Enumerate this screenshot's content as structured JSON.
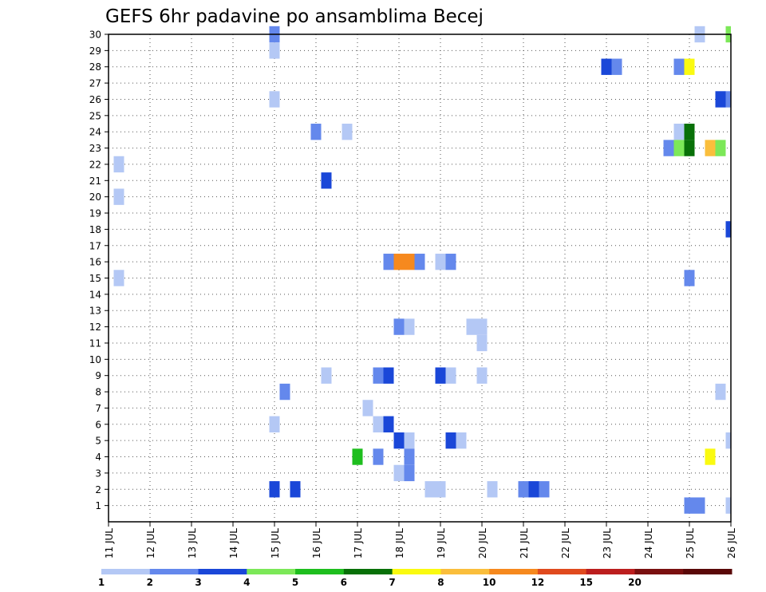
{
  "chart_data": {
    "type": "heatmap",
    "title": "GEFS 6hr padavine po ansamblima Becej",
    "xlabel": "",
    "ylabel": "",
    "x_unit": "day of July",
    "x_range": [
      11,
      26
    ],
    "x_tick_labels": [
      "11 JUL",
      "12 JUL",
      "13 JUL",
      "14 JUL",
      "15 JUL",
      "16 JUL",
      "17 JUL",
      "18 JUL",
      "19 JUL",
      "20 JUL",
      "21 JUL",
      "22 JUL",
      "23 JUL",
      "24 JUL",
      "25 JUL",
      "26 JUL"
    ],
    "y_range": [
      0,
      30
    ],
    "y_tick_labels": [
      "1",
      "2",
      "3",
      "4",
      "5",
      "6",
      "7",
      "8",
      "9",
      "10",
      "11",
      "12",
      "13",
      "14",
      "15",
      "16",
      "17",
      "18",
      "19",
      "20",
      "21",
      "22",
      "23",
      "24",
      "25",
      "26",
      "27",
      "28",
      "29",
      "30"
    ],
    "grid": true,
    "colorbar": {
      "labels": [
        "1",
        "2",
        "3",
        "4",
        "5",
        "6",
        "7",
        "8",
        "10",
        "12",
        "15",
        "20"
      ],
      "colors": [
        "#b4c8f5",
        "#6488ec",
        "#1a47d8",
        "#7ce858",
        "#1ebe1e",
        "#087008",
        "#fafa10",
        "#fabe3c",
        "#f6891e",
        "#e04a1e",
        "#bc1e1e",
        "#7a1010",
        "#5a0808"
      ]
    },
    "cell_value_note": "x = forecast time (day of July, 6-hour steps), member = ensemble member, value = precipitation category index into colorbar.colors (1-based)",
    "cells": [
      {
        "x": 11.25,
        "member": 22,
        "value": 1
      },
      {
        "x": 11.25,
        "member": 20,
        "value": 1
      },
      {
        "x": 11.25,
        "member": 15,
        "value": 1
      },
      {
        "x": 15.0,
        "member": 30,
        "value": 2
      },
      {
        "x": 15.0,
        "member": 29,
        "value": 1
      },
      {
        "x": 15.0,
        "member": 26,
        "value": 1
      },
      {
        "x": 15.0,
        "member": 6,
        "value": 1
      },
      {
        "x": 15.0,
        "member": 2,
        "value": 3
      },
      {
        "x": 15.25,
        "member": 8,
        "value": 2
      },
      {
        "x": 15.5,
        "member": 2,
        "value": 3
      },
      {
        "x": 16.0,
        "member": 24,
        "value": 2
      },
      {
        "x": 16.25,
        "member": 21,
        "value": 3
      },
      {
        "x": 16.25,
        "member": 9,
        "value": 1
      },
      {
        "x": 16.75,
        "member": 24,
        "value": 1
      },
      {
        "x": 17.0,
        "member": 4,
        "value": 5
      },
      {
        "x": 17.25,
        "member": 7,
        "value": 1
      },
      {
        "x": 17.5,
        "member": 9,
        "value": 2
      },
      {
        "x": 17.5,
        "member": 6,
        "value": 1
      },
      {
        "x": 17.5,
        "member": 4,
        "value": 2
      },
      {
        "x": 17.75,
        "member": 16,
        "value": 2
      },
      {
        "x": 17.75,
        "member": 9,
        "value": 3
      },
      {
        "x": 17.75,
        "member": 6,
        "value": 3
      },
      {
        "x": 18.0,
        "member": 16,
        "value": 9
      },
      {
        "x": 18.0,
        "member": 12,
        "value": 2
      },
      {
        "x": 18.0,
        "member": 5,
        "value": 3
      },
      {
        "x": 18.0,
        "member": 3,
        "value": 1
      },
      {
        "x": 18.25,
        "member": 16,
        "value": 9
      },
      {
        "x": 18.25,
        "member": 12,
        "value": 1
      },
      {
        "x": 18.25,
        "member": 5,
        "value": 1
      },
      {
        "x": 18.25,
        "member": 4,
        "value": 2
      },
      {
        "x": 18.25,
        "member": 3,
        "value": 2
      },
      {
        "x": 18.5,
        "member": 16,
        "value": 2
      },
      {
        "x": 18.75,
        "member": 2,
        "value": 1
      },
      {
        "x": 19.0,
        "member": 16,
        "value": 1
      },
      {
        "x": 19.0,
        "member": 9,
        "value": 3
      },
      {
        "x": 19.0,
        "member": 2,
        "value": 1
      },
      {
        "x": 19.25,
        "member": 16,
        "value": 2
      },
      {
        "x": 19.25,
        "member": 9,
        "value": 1
      },
      {
        "x": 19.25,
        "member": 5,
        "value": 3
      },
      {
        "x": 19.5,
        "member": 5,
        "value": 1
      },
      {
        "x": 19.75,
        "member": 12,
        "value": 1
      },
      {
        "x": 20.0,
        "member": 12,
        "value": 1
      },
      {
        "x": 20.0,
        "member": 11,
        "value": 1
      },
      {
        "x": 20.0,
        "member": 9,
        "value": 1
      },
      {
        "x": 20.25,
        "member": 2,
        "value": 1
      },
      {
        "x": 21.0,
        "member": 2,
        "value": 2
      },
      {
        "x": 21.25,
        "member": 2,
        "value": 3
      },
      {
        "x": 21.5,
        "member": 2,
        "value": 2
      },
      {
        "x": 23.0,
        "member": 28,
        "value": 3
      },
      {
        "x": 23.25,
        "member": 28,
        "value": 2
      },
      {
        "x": 24.5,
        "member": 23,
        "value": 2
      },
      {
        "x": 24.75,
        "member": 28,
        "value": 2
      },
      {
        "x": 24.75,
        "member": 24,
        "value": 1
      },
      {
        "x": 24.75,
        "member": 23,
        "value": 4
      },
      {
        "x": 25.0,
        "member": 28,
        "value": 7
      },
      {
        "x": 25.0,
        "member": 24,
        "value": 6
      },
      {
        "x": 25.0,
        "member": 23,
        "value": 6
      },
      {
        "x": 25.0,
        "member": 15,
        "value": 2
      },
      {
        "x": 25.0,
        "member": 1,
        "value": 2
      },
      {
        "x": 25.25,
        "member": 30,
        "value": 1
      },
      {
        "x": 25.25,
        "member": 1,
        "value": 2
      },
      {
        "x": 25.5,
        "member": 23,
        "value": 8
      },
      {
        "x": 25.5,
        "member": 4,
        "value": 7
      },
      {
        "x": 25.75,
        "member": 26,
        "value": 3
      },
      {
        "x": 25.75,
        "member": 23,
        "value": 4
      },
      {
        "x": 25.75,
        "member": 8,
        "value": 1
      },
      {
        "x": 26.0,
        "member": 30,
        "value": 4
      },
      {
        "x": 26.0,
        "member": 26,
        "value": 2
      },
      {
        "x": 26.0,
        "member": 18,
        "value": 3
      },
      {
        "x": 26.0,
        "member": 5,
        "value": 1
      },
      {
        "x": 26.0,
        "member": 1,
        "value": 1
      }
    ]
  }
}
